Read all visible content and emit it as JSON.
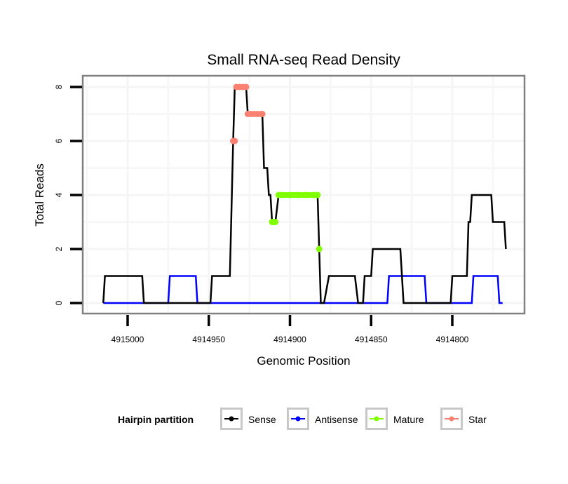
{
  "chart_data": {
    "type": "line",
    "title": "Small RNA-seq Read Density",
    "xlabel": "Genomic Position",
    "ylabel": "Total Reads",
    "x_reversed": true,
    "xlim": [
      4915029,
      4914757
    ],
    "ylim": [
      -0.4,
      8.4
    ],
    "x_ticks": [
      4915000,
      4914950,
      4914900,
      4914850,
      4914800
    ],
    "x_tick_labels": [
      "4915000",
      "4914950",
      "4914900",
      "4914850",
      "4914800"
    ],
    "y_ticks": [
      0,
      2,
      4,
      6,
      8
    ],
    "y_tick_labels": [
      "0",
      "2",
      "4",
      "6",
      "8"
    ],
    "grid": true,
    "legend": {
      "title": "Hairpin partition",
      "position": "bottom",
      "entries": [
        {
          "name": "Sense",
          "color": "#000000"
        },
        {
          "name": "Antisense",
          "color": "#0000ff"
        },
        {
          "name": "Mature",
          "color": "#7fff00"
        },
        {
          "name": "Star",
          "color": "#fa8072"
        }
      ]
    },
    "series": [
      {
        "name": "Sense",
        "color": "#000000",
        "x": [
          4915015,
          4915014,
          4914991,
          4914990,
          4914949,
          4914948,
          4914937,
          4914935,
          4914934,
          4914927,
          4914926,
          4914917,
          4914916,
          4914914,
          4914913,
          4914912,
          4914911,
          4914909,
          4914907,
          4914883,
          4914882,
          4914881,
          4914879,
          4914876,
          4914860,
          4914858,
          4914855,
          4914854,
          4914850,
          4914849,
          4914832,
          4914830,
          4914801,
          4914800,
          4914791,
          4914790,
          4914789,
          4914788,
          4914776,
          4914775,
          4914768,
          4914767
        ],
        "y": [
          0,
          1,
          1,
          0,
          0,
          1,
          1,
          6,
          8,
          8,
          7,
          7,
          5,
          5,
          4,
          4,
          3,
          3,
          4,
          4,
          2,
          0,
          0,
          1,
          1,
          0,
          0,
          1,
          1,
          2,
          2,
          0,
          0,
          1,
          1,
          3,
          3,
          4,
          4,
          3,
          3,
          2
        ]
      },
      {
        "name": "Antisense",
        "color": "#0000ff",
        "x": [
          4915015,
          4914975,
          4914974,
          4914958,
          4914957,
          4914840,
          4914839,
          4914817,
          4914816,
          4914788,
          4914787,
          4914772,
          4914771,
          4914769
        ],
        "y": [
          0,
          0,
          1,
          1,
          0,
          0,
          1,
          1,
          0,
          0,
          1,
          1,
          0,
          0
        ]
      },
      {
        "name": "Mature",
        "color": "#7fff00",
        "x": [
          4914911,
          4914910,
          4914909,
          4914907,
          4914905,
          4914900,
          4914895,
          4914890,
          4914885,
          4914883,
          4914882
        ],
        "y": [
          3,
          3,
          3,
          4,
          4,
          4,
          4,
          4,
          4,
          4,
          2
        ]
      },
      {
        "name": "Star",
        "color": "#fa8072",
        "x": [
          4914935,
          4914934,
          4914933,
          4914931,
          4914929,
          4914927,
          4914926,
          4914924,
          4914922,
          4914920,
          4914918,
          4914917
        ],
        "y": [
          6,
          6,
          8,
          8,
          8,
          8,
          7,
          7,
          7,
          7,
          7,
          7
        ]
      }
    ]
  }
}
